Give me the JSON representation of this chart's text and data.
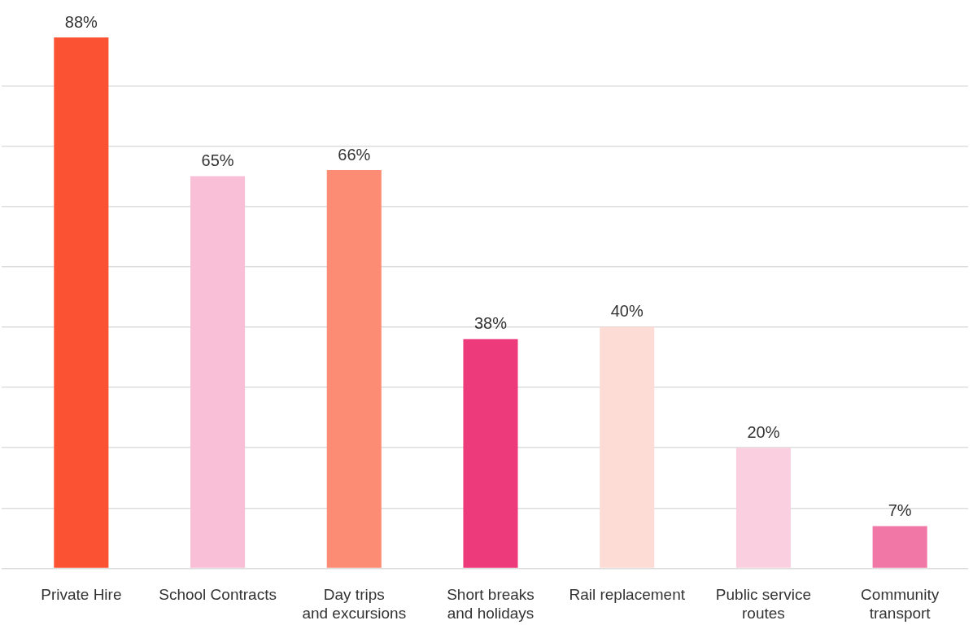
{
  "chart_data": {
    "type": "bar",
    "categories": [
      "Private Hire",
      "School Contracts",
      "Day trips\nand excursions",
      "Short breaks\nand holidays",
      "Rail replacement",
      "Public service\nroutes",
      "Community\ntransport"
    ],
    "values": [
      88,
      65,
      66,
      38,
      40,
      20,
      7
    ],
    "colors": [
      "#fb5233",
      "#f8bfd6",
      "#fd8c75",
      "#ec3a7a",
      "#fddcd6",
      "#fad0e0",
      "#f178a6"
    ],
    "value_labels": [
      "88%",
      "65%",
      "66%",
      "38%",
      "40%",
      "20%",
      "7%"
    ],
    "ylim": [
      0,
      88
    ],
    "yticks": [
      {
        "value": 0,
        "label": null
      },
      {
        "value": 10,
        "label": null
      },
      {
        "value": 20,
        "label": null
      },
      {
        "value": 30,
        "label": null
      },
      {
        "value": 40,
        "label": null
      },
      {
        "value": 50,
        "label": null
      },
      {
        "value": 60,
        "label": null
      },
      {
        "value": 70,
        "label": null
      },
      {
        "value": 80,
        "label": null
      }
    ],
    "grid": "y",
    "tick_labels": "x"
  }
}
